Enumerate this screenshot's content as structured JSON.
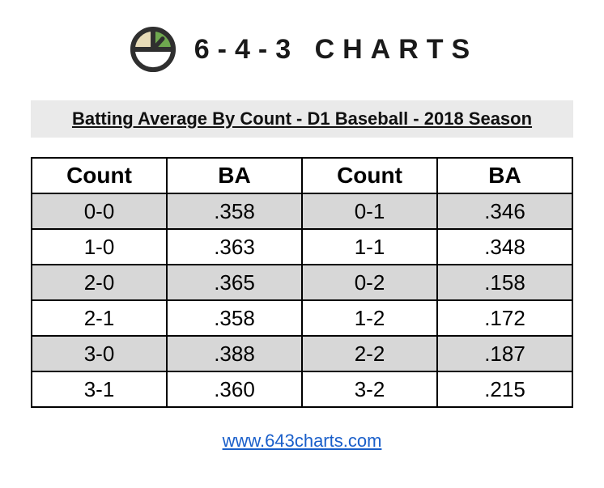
{
  "brand": {
    "name": "6-4-3 CHARTS",
    "logo_colors": {
      "outline": "#2f2f2f",
      "left_fill": "#e8dcb8",
      "right_fill": "#6fa84f"
    }
  },
  "title": "Batting Average By Count - D1 Baseball - 2018 Season",
  "title_bg": "#eaeaea",
  "table": {
    "type": "table",
    "headers": [
      "Count",
      "BA",
      "Count",
      "BA"
    ],
    "rows": [
      {
        "cells": [
          "0-0",
          ".358",
          "0-1",
          ".346"
        ],
        "shaded": true
      },
      {
        "cells": [
          "1-0",
          ".363",
          "1-1",
          ".348"
        ],
        "shaded": false
      },
      {
        "cells": [
          "2-0",
          ".365",
          "0-2",
          ".158"
        ],
        "shaded": true
      },
      {
        "cells": [
          "2-1",
          ".358",
          "1-2",
          ".172"
        ],
        "shaded": false
      },
      {
        "cells": [
          "3-0",
          ".388",
          "2-2",
          ".187"
        ],
        "shaded": true
      },
      {
        "cells": [
          "3-1",
          ".360",
          "3-2",
          ".215"
        ],
        "shaded": false
      }
    ],
    "header_fontsize": 28,
    "cell_fontsize": 26,
    "border_color": "#000000",
    "shade_color": "#d7d7d7",
    "plain_color": "#ffffff"
  },
  "footer": {
    "url_text": "www.643charts.com",
    "link_color": "#1a5fca"
  }
}
